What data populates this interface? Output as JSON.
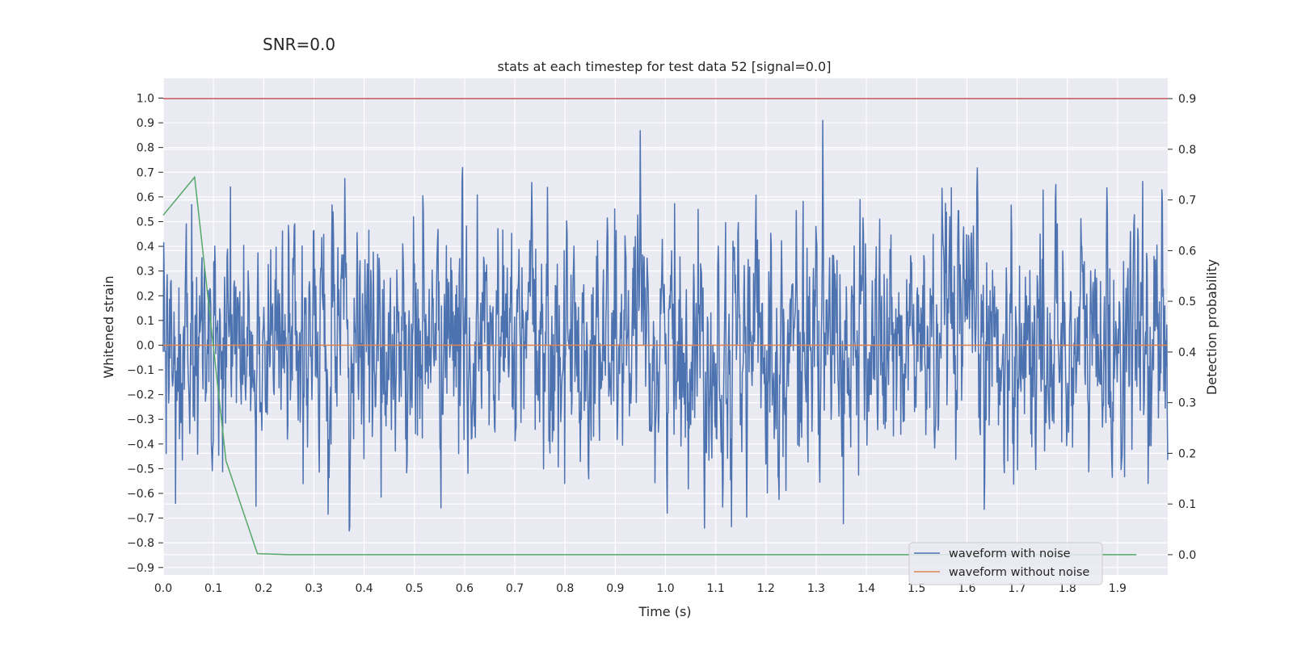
{
  "chart_data": {
    "type": "line",
    "suptitle": "SNR=0.0",
    "title": "stats at each timestep for test data 52 [signal=0.0]",
    "xlabel": "Time (s)",
    "ylabel": "Whitened strain",
    "ylabel_right": "Detection probability",
    "xlim": [
      0.0,
      2.0
    ],
    "ylim": [
      -0.93,
      1.08
    ],
    "ylim_right": [
      -0.04,
      0.94
    ],
    "xticks": [
      "0.0",
      "0.1",
      "0.2",
      "0.3",
      "0.4",
      "0.5",
      "0.6",
      "0.7",
      "0.8",
      "0.9",
      "1.0",
      "1.1",
      "1.2",
      "1.3",
      "1.4",
      "1.5",
      "1.6",
      "1.7",
      "1.8",
      "1.9"
    ],
    "yticks": [
      "1.0",
      "0.9",
      "0.8",
      "0.7",
      "0.6",
      "0.5",
      "0.4",
      "0.3",
      "0.2",
      "0.1",
      "0.0",
      "−0.1",
      "−0.2",
      "−0.3",
      "−0.4",
      "−0.5",
      "−0.6",
      "−0.7",
      "−0.8",
      "−0.9"
    ],
    "yticks_right": [
      "0.9",
      "0.8",
      "0.7",
      "0.6",
      "0.5",
      "0.4",
      "0.3",
      "0.2",
      "0.1",
      "0.0"
    ],
    "series": [
      {
        "name": "waveform with noise",
        "color": "#4c72b0",
        "note": "random-like noise, about 2048 samples, range roughly -0.85 to 1.0",
        "samples": 2048,
        "x": [
          0.0,
          2.0
        ],
        "y_range": [
          -0.85,
          1.0
        ]
      },
      {
        "name": "waveform without noise",
        "color": "#dd8452",
        "x": [
          0.0,
          2.0
        ],
        "y": [
          0.0,
          0.0
        ]
      },
      {
        "name": "detection probability",
        "color": "#55a868",
        "axis": "right",
        "x": [
          0.0,
          0.0625,
          0.125,
          0.1875,
          0.25,
          0.5,
          1.0,
          1.5,
          1.9375
        ],
        "y": [
          0.67,
          0.745,
          0.185,
          0.002,
          0.0,
          0.0,
          0.0,
          0.0,
          0.0
        ]
      }
    ],
    "hlines": [
      {
        "axis": "right",
        "y": 0.9,
        "color": "#c44e52"
      }
    ],
    "legend": {
      "placement": "lower right",
      "entries": [
        "waveform with noise",
        "waveform without noise"
      ]
    },
    "grid": true
  }
}
